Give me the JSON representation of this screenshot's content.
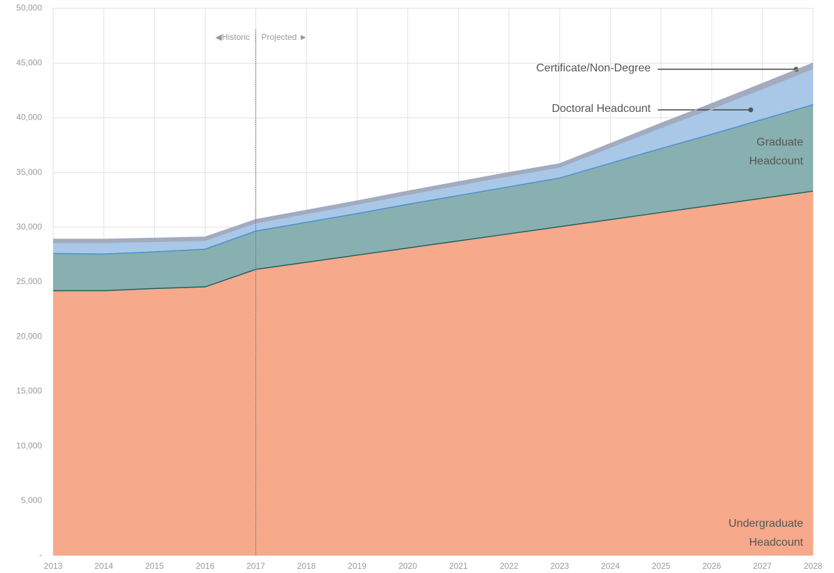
{
  "chart_data": {
    "type": "stacked_area",
    "x": [
      2013,
      2014,
      2015,
      2016,
      2017,
      2018,
      2019,
      2020,
      2021,
      2022,
      2023,
      2024,
      2025,
      2026,
      2027,
      2028
    ],
    "xlim": [
      2013,
      2028
    ],
    "xticks": [
      2013,
      2014,
      2015,
      2016,
      2017,
      2018,
      2019,
      2020,
      2021,
      2022,
      2023,
      2024,
      2025,
      2026,
      2027,
      2028
    ],
    "ylim": [
      0,
      50000
    ],
    "yticks": [
      {
        "value": 0,
        "label": "-"
      },
      {
        "value": 5000,
        "label": "5,000"
      },
      {
        "value": 10000,
        "label": "10,000"
      },
      {
        "value": 15000,
        "label": "15,000"
      },
      {
        "value": 20000,
        "label": "20,000"
      },
      {
        "value": 25000,
        "label": "25,000"
      },
      {
        "value": 30000,
        "label": "30,000"
      },
      {
        "value": 35000,
        "label": "35,000"
      },
      {
        "value": 40000,
        "label": "40,000"
      },
      {
        "value": 45000,
        "label": "45,000"
      },
      {
        "value": 50000,
        "label": "50,000"
      }
    ],
    "grid": true,
    "divider": {
      "x": 2017,
      "label": "◀Historic  |  Projected ►"
    },
    "series": [
      {
        "name": "Undergraduate Headcount",
        "color": "#f7a98b",
        "line_color": "#1f5f5f",
        "values": [
          24200,
          24200,
          24400,
          24550,
          26150,
          26800,
          27450,
          28100,
          28750,
          29400,
          30050,
          30700,
          31350,
          32000,
          32650,
          33300
        ]
      },
      {
        "name": "Graduate Headcount",
        "color": "#88b0b0",
        "line_color": "#4a90d0",
        "values": [
          3400,
          3350,
          3350,
          3450,
          3500,
          3650,
          3800,
          4000,
          4150,
          4300,
          4450,
          5150,
          5850,
          6500,
          7200,
          7900
        ]
      },
      {
        "name": "Doctoral Headcount",
        "color": "#a9c8e8",
        "line_color": "#a9c8e8",
        "values": [
          900,
          950,
          850,
          700,
          650,
          700,
          750,
          800,
          850,
          900,
          900,
          1350,
          1800,
          2250,
          2700,
          3200
        ]
      },
      {
        "name": "Certificate/Non-Degree",
        "color": "#a3abbf",
        "line_color": "#a3abbf",
        "values": [
          400,
          400,
          400,
          400,
          400,
          400,
          400,
          400,
          400,
          400,
          400,
          450,
          500,
          550,
          580,
          600
        ]
      }
    ]
  }
}
